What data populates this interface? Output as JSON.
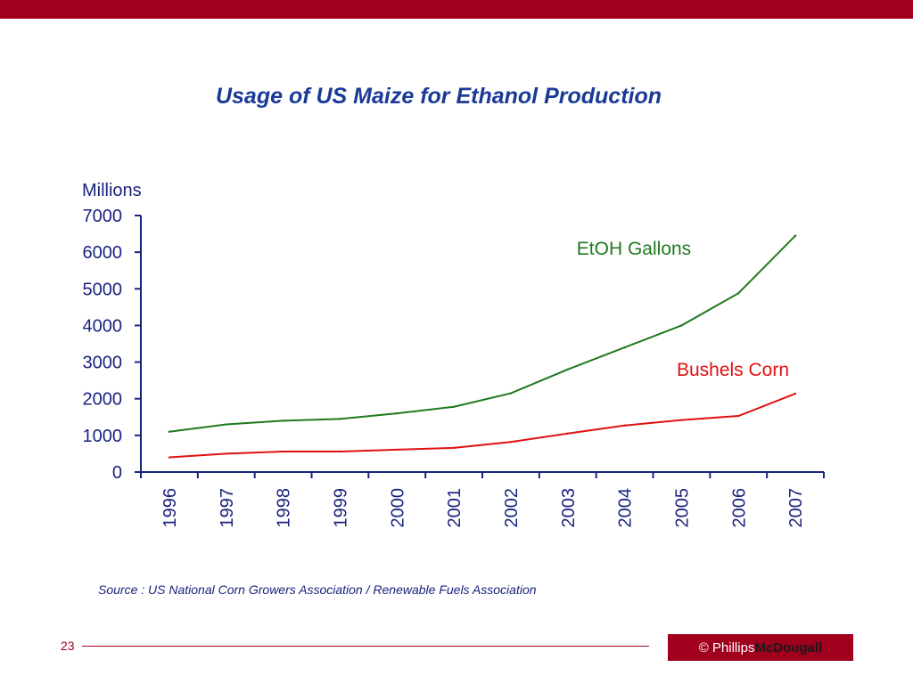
{
  "slide": {
    "title": "Usage of US Maize for Ethanol Production",
    "source": "Source : US National Corn Growers Association / Renewable Fuels Association",
    "page_number": "23",
    "logo": {
      "copyright": "©",
      "part1": "Phillips",
      "part2": "McDougall"
    }
  },
  "colors": {
    "brand": "#a0001e",
    "title": "#1b3a96",
    "axis": "#1a237e",
    "etoh": "#1e7a1e",
    "corn": "#e01010"
  },
  "chart_data": {
    "type": "line",
    "ylabel": "Millions",
    "ylim": [
      0,
      7000
    ],
    "yticks": [
      0,
      1000,
      2000,
      3000,
      4000,
      5000,
      6000,
      7000
    ],
    "categories": [
      "1996",
      "1997",
      "1998",
      "1999",
      "2000",
      "2001",
      "2002",
      "2003",
      "2004",
      "2005",
      "2006",
      "2007"
    ],
    "grid": false,
    "series": [
      {
        "name": "EtOH Gallons",
        "color": "#1e7a1e",
        "values": [
          1100,
          1300,
          1400,
          1450,
          1600,
          1780,
          2150,
          2800,
          3400,
          4000,
          4880,
          6450
        ]
      },
      {
        "name": "Bushels Corn",
        "color": "#e01010",
        "values": [
          400,
          500,
          560,
          560,
          610,
          660,
          820,
          1050,
          1270,
          1420,
          1530,
          2140
        ]
      }
    ]
  }
}
